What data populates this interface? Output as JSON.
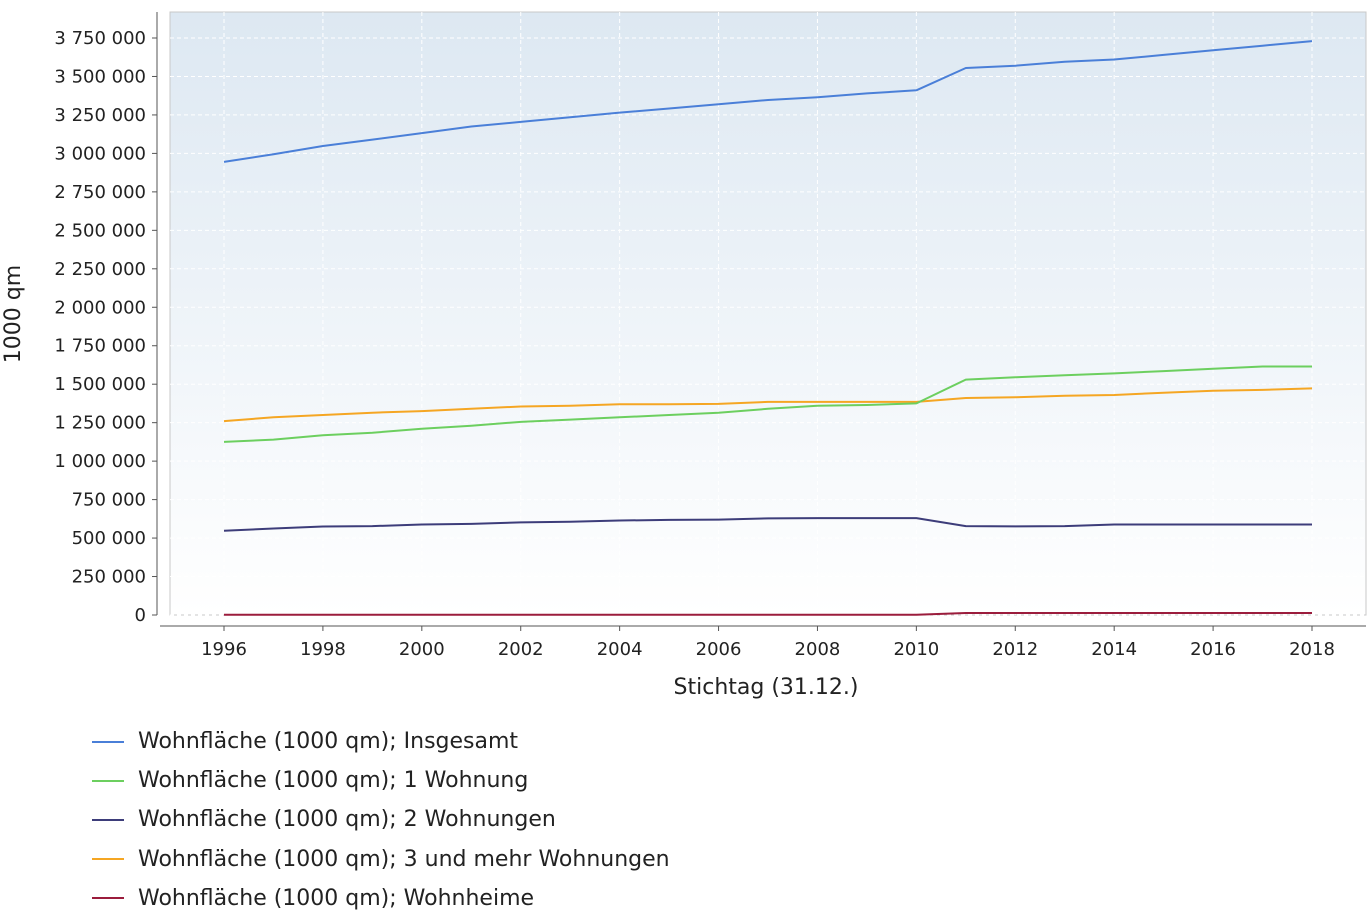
{
  "chart_data": {
    "type": "line",
    "xlabel": "Stichtag (31.12.)",
    "ylabel": "1000 qm",
    "xlim": [
      1996,
      2018
    ],
    "ylim": [
      0,
      3750000
    ],
    "x_ticks": [
      1996,
      1998,
      2000,
      2002,
      2004,
      2006,
      2008,
      2010,
      2012,
      2014,
      2016,
      2018
    ],
    "x_tick_labels": [
      "1996",
      "1998",
      "2000",
      "2002",
      "2004",
      "2006",
      "2008",
      "2010",
      "2012",
      "2014",
      "2016",
      "2018"
    ],
    "y_ticks": [
      0,
      250000,
      500000,
      750000,
      1000000,
      1250000,
      1500000,
      1750000,
      2000000,
      2250000,
      2500000,
      2750000,
      3000000,
      3250000,
      3500000,
      3750000
    ],
    "y_tick_labels": [
      "0",
      "250 000",
      "500 000",
      "750 000",
      "1 000 000",
      "1 250 000",
      "1 500 000",
      "1 750 000",
      "2 000 000",
      "2 250 000",
      "2 500 000",
      "2 750 000",
      "3 000 000",
      "3 250 000",
      "3 500 000",
      "3 750 000"
    ],
    "grid": true,
    "legend_position": "bottom",
    "x": [
      1996,
      1997,
      1998,
      1999,
      2000,
      2001,
      2002,
      2003,
      2004,
      2005,
      2006,
      2007,
      2008,
      2009,
      2010,
      2011,
      2012,
      2013,
      2014,
      2015,
      2016,
      2017,
      2018
    ],
    "series": [
      {
        "name": "Wohnfläche (1000 qm); Insgesamt",
        "color": "#4a7fd8",
        "values": [
          2945000,
          2995000,
          3048000,
          3090000,
          3132000,
          3175000,
          3205000,
          3235000,
          3265000,
          3292000,
          3320000,
          3347000,
          3365000,
          3390000,
          3410000,
          3555000,
          3570000,
          3595000,
          3610000,
          3640000,
          3670000,
          3700000,
          3730000
        ]
      },
      {
        "name": "Wohnfläche (1000 qm); 1 Wohnung",
        "color": "#6ccf5f",
        "values": [
          1125000,
          1140000,
          1168000,
          1185000,
          1210000,
          1230000,
          1255000,
          1270000,
          1285000,
          1300000,
          1315000,
          1340000,
          1360000,
          1365000,
          1375000,
          1530000,
          1545000,
          1558000,
          1570000,
          1585000,
          1600000,
          1615000,
          1615000
        ]
      },
      {
        "name": "Wohnfläche (1000 qm); 2 Wohnungen",
        "color": "#3d3d7a",
        "values": [
          548000,
          562000,
          575000,
          578000,
          588000,
          592000,
          602000,
          606000,
          614000,
          618000,
          620000,
          628000,
          630000,
          630000,
          630000,
          578000,
          576000,
          578000,
          588000,
          588000,
          588000,
          588000,
          588000
        ]
      },
      {
        "name": "Wohnfläche (1000 qm); 3 und mehr Wohnungen",
        "color": "#f5a623",
        "values": [
          1260000,
          1285000,
          1300000,
          1315000,
          1325000,
          1340000,
          1355000,
          1360000,
          1370000,
          1370000,
          1372000,
          1385000,
          1385000,
          1385000,
          1385000,
          1410000,
          1415000,
          1425000,
          1430000,
          1445000,
          1458000,
          1463000,
          1473000
        ]
      },
      {
        "name": "Wohnfläche (1000 qm); Wohnheime",
        "color": "#9b1c3c",
        "values": [
          2000,
          2000,
          2000,
          2000,
          2000,
          2000,
          2000,
          2000,
          2000,
          2000,
          2000,
          2000,
          2000,
          2000,
          2000,
          13000,
          13000,
          13000,
          13000,
          13000,
          13000,
          13000,
          13000
        ]
      }
    ]
  }
}
